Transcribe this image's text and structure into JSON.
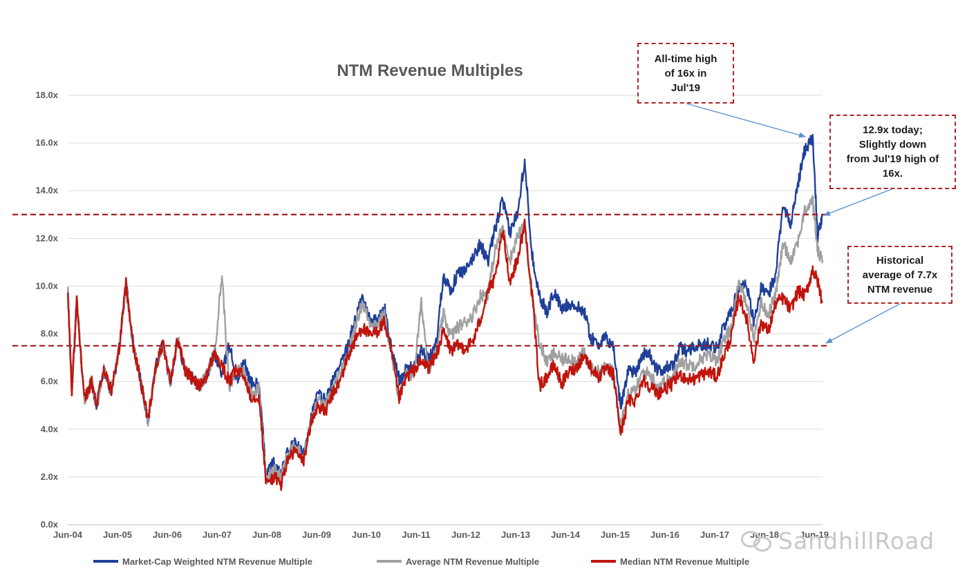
{
  "chart_data": {
    "type": "line",
    "title": "NTM Revenue Multiples",
    "xlabel": "",
    "ylabel": "",
    "ylim": [
      0,
      18
    ],
    "y_ticks": [
      "0.0x",
      "2.0x",
      "4.0x",
      "6.0x",
      "8.0x",
      "10.0x",
      "12.0x",
      "14.0x",
      "16.0x",
      "18.0x"
    ],
    "x_ticks": [
      "Jun-04",
      "Jun-05",
      "Jun-06",
      "Jun-07",
      "Jun-08",
      "Jun-09",
      "Jun-10",
      "Jun-11",
      "Jun-12",
      "Jun-13",
      "Jun-14",
      "Jun-15",
      "Jun-16",
      "Jun-17",
      "Jun-18",
      "Jun-19"
    ],
    "x_range": [
      2004.417,
      2019.75
    ],
    "grid": true,
    "legend_position": "bottom",
    "reference_lines": [
      13.0,
      7.5
    ],
    "series": [
      {
        "name": "Market-Cap Weighted NTM Revenue Multiple",
        "color": "#1f3f99",
        "x": [
          2004.42,
          2004.5,
          2004.6,
          2004.75,
          2004.9,
          2005.0,
          2005.15,
          2005.3,
          2005.45,
          2005.6,
          2005.75,
          2005.9,
          2006.05,
          2006.2,
          2006.35,
          2006.5,
          2006.65,
          2006.8,
          2006.95,
          2007.1,
          2007.25,
          2007.4,
          2007.55,
          2007.7,
          2007.85,
          2008.0,
          2008.15,
          2008.3,
          2008.45,
          2008.6,
          2008.75,
          2008.9,
          2009.05,
          2009.2,
          2009.35,
          2009.5,
          2009.65,
          2009.8,
          2009.95,
          2010.1,
          2010.25,
          2010.4,
          2010.55,
          2010.7,
          2010.85,
          2011.0,
          2011.15,
          2011.3,
          2011.45,
          2011.6,
          2011.75,
          2011.9,
          2012.05,
          2012.2,
          2012.35,
          2012.5,
          2012.65,
          2012.8,
          2012.95,
          2013.1,
          2013.25,
          2013.4,
          2013.55,
          2013.7,
          2013.85,
          2014.0,
          2014.15,
          2014.3,
          2014.45,
          2014.6,
          2014.75,
          2014.9,
          2015.05,
          2015.2,
          2015.35,
          2015.5,
          2015.65,
          2015.8,
          2015.95,
          2016.1,
          2016.25,
          2016.4,
          2016.55,
          2016.7,
          2016.85,
          2017.0,
          2017.15,
          2017.3,
          2017.45,
          2017.6,
          2017.75,
          2017.9,
          2018.05,
          2018.2,
          2018.35,
          2018.5,
          2018.65,
          2018.8,
          2018.95,
          2019.1,
          2019.25,
          2019.4,
          2019.55,
          2019.65,
          2019.75
        ],
        "values": [
          9.8,
          5.5,
          9.5,
          5.2,
          6.0,
          5.0,
          6.5,
          5.6,
          7.2,
          10.1,
          7.5,
          6.0,
          4.4,
          6.6,
          7.6,
          6.0,
          7.8,
          6.5,
          6.1,
          5.8,
          6.3,
          7.2,
          6.3,
          7.6,
          6.0,
          6.8,
          5.9,
          5.9,
          2.1,
          2.6,
          2.1,
          3.1,
          3.4,
          2.9,
          4.4,
          5.5,
          5.2,
          6.0,
          6.6,
          7.4,
          8.6,
          9.5,
          8.7,
          8.5,
          9.1,
          7.3,
          6.1,
          6.5,
          6.6,
          7.3,
          6.9,
          7.6,
          10.5,
          9.8,
          10.6,
          10.6,
          11.2,
          11.8,
          11.0,
          12.4,
          13.6,
          12.2,
          13.1,
          15.3,
          11.3,
          9.6,
          8.9,
          9.8,
          9.0,
          9.3,
          9.1,
          9.0,
          7.8,
          7.6,
          7.8,
          7.5,
          4.9,
          6.5,
          6.4,
          7.2,
          7.1,
          6.4,
          6.6,
          6.6,
          7.4,
          7.3,
          7.5,
          7.5,
          7.6,
          7.4,
          8.3,
          9.0,
          9.9,
          10.2,
          8.5,
          9.9,
          9.6,
          10.6,
          13.5,
          12.5,
          14.3,
          15.8,
          16.2,
          12.1,
          12.9
        ]
      },
      {
        "name": "Average NTM Revenue Multiple",
        "color": "#a0a0a0",
        "x": [
          2004.42,
          2004.5,
          2004.6,
          2004.75,
          2004.9,
          2005.0,
          2005.15,
          2005.3,
          2005.45,
          2005.6,
          2005.75,
          2005.9,
          2006.05,
          2006.2,
          2006.35,
          2006.5,
          2006.65,
          2006.8,
          2006.95,
          2007.1,
          2007.25,
          2007.4,
          2007.55,
          2007.7,
          2007.85,
          2008.0,
          2008.15,
          2008.3,
          2008.45,
          2008.6,
          2008.75,
          2008.9,
          2009.05,
          2009.2,
          2009.35,
          2009.5,
          2009.65,
          2009.8,
          2009.95,
          2010.1,
          2010.25,
          2010.4,
          2010.55,
          2010.7,
          2010.85,
          2011.0,
          2011.15,
          2011.3,
          2011.45,
          2011.6,
          2011.75,
          2011.9,
          2012.05,
          2012.2,
          2012.35,
          2012.5,
          2012.65,
          2012.8,
          2012.95,
          2013.1,
          2013.25,
          2013.4,
          2013.55,
          2013.7,
          2013.85,
          2014.0,
          2014.15,
          2014.3,
          2014.45,
          2014.6,
          2014.75,
          2014.9,
          2015.05,
          2015.2,
          2015.35,
          2015.5,
          2015.65,
          2015.8,
          2015.95,
          2016.1,
          2016.25,
          2016.4,
          2016.55,
          2016.7,
          2016.85,
          2017.0,
          2017.15,
          2017.3,
          2017.45,
          2017.6,
          2017.75,
          2017.9,
          2018.05,
          2018.2,
          2018.35,
          2018.5,
          2018.65,
          2018.8,
          2018.95,
          2019.1,
          2019.25,
          2019.4,
          2019.55,
          2019.65,
          2019.75
        ],
        "values": [
          9.8,
          5.5,
          9.5,
          5.2,
          6.0,
          5.0,
          6.5,
          5.6,
          7.2,
          10.1,
          7.5,
          6.0,
          4.4,
          6.6,
          7.6,
          6.0,
          7.8,
          6.5,
          6.1,
          5.8,
          6.3,
          7.2,
          10.5,
          5.6,
          6.6,
          6.4,
          5.5,
          5.7,
          1.9,
          2.3,
          2.0,
          3.0,
          3.3,
          2.8,
          4.3,
          5.2,
          4.9,
          5.7,
          6.3,
          7.0,
          8.3,
          9.3,
          8.5,
          8.4,
          8.8,
          7.0,
          5.3,
          6.3,
          6.3,
          9.3,
          6.5,
          7.2,
          8.8,
          7.9,
          8.3,
          8.5,
          8.8,
          9.6,
          9.7,
          11.5,
          12.5,
          11.1,
          12.1,
          12.5,
          9.5,
          7.6,
          6.8,
          7.2,
          6.9,
          7.0,
          6.9,
          7.2,
          6.5,
          6.4,
          6.6,
          6.4,
          4.3,
          5.5,
          5.6,
          6.4,
          6.3,
          5.8,
          6.0,
          6.1,
          6.9,
          6.7,
          6.7,
          7.0,
          7.1,
          6.9,
          7.7,
          8.3,
          10.1,
          9.4,
          7.8,
          9.3,
          8.8,
          9.7,
          11.8,
          11.1,
          11.9,
          13.2,
          13.6,
          11.5,
          11.1
        ]
      },
      {
        "name": "Median NTM Revenue Multiple",
        "color": "#c0140c",
        "x": [
          2004.42,
          2004.5,
          2004.6,
          2004.75,
          2004.9,
          2005.0,
          2005.15,
          2005.3,
          2005.45,
          2005.6,
          2005.75,
          2005.9,
          2006.05,
          2006.2,
          2006.35,
          2006.5,
          2006.65,
          2006.8,
          2006.95,
          2007.1,
          2007.25,
          2007.4,
          2007.55,
          2007.7,
          2007.85,
          2008.0,
          2008.15,
          2008.3,
          2008.45,
          2008.6,
          2008.75,
          2008.9,
          2009.05,
          2009.2,
          2009.35,
          2009.5,
          2009.65,
          2009.8,
          2009.95,
          2010.1,
          2010.25,
          2010.4,
          2010.55,
          2010.7,
          2010.85,
          2011.0,
          2011.15,
          2011.3,
          2011.45,
          2011.6,
          2011.75,
          2011.9,
          2012.05,
          2012.2,
          2012.35,
          2012.5,
          2012.65,
          2012.8,
          2012.95,
          2013.1,
          2013.25,
          2013.4,
          2013.55,
          2013.7,
          2013.85,
          2014.0,
          2014.15,
          2014.3,
          2014.45,
          2014.6,
          2014.75,
          2014.9,
          2015.05,
          2015.2,
          2015.35,
          2015.5,
          2015.65,
          2015.8,
          2015.95,
          2016.1,
          2016.25,
          2016.4,
          2016.55,
          2016.7,
          2016.85,
          2017.0,
          2017.15,
          2017.3,
          2017.45,
          2017.6,
          2017.75,
          2017.9,
          2018.05,
          2018.2,
          2018.35,
          2018.5,
          2018.65,
          2018.8,
          2018.95,
          2019.1,
          2019.25,
          2019.4,
          2019.55,
          2019.65,
          2019.75
        ],
        "values": [
          9.8,
          5.5,
          9.5,
          5.2,
          6.0,
          5.0,
          6.5,
          5.6,
          7.2,
          10.1,
          7.5,
          6.0,
          4.4,
          6.6,
          7.6,
          6.0,
          7.8,
          6.5,
          6.1,
          5.8,
          6.3,
          7.2,
          6.6,
          6.0,
          6.5,
          6.2,
          5.3,
          5.4,
          1.7,
          2.0,
          1.7,
          2.8,
          3.1,
          2.6,
          4.2,
          5.0,
          4.7,
          5.5,
          6.0,
          7.0,
          7.7,
          8.3,
          7.9,
          8.1,
          8.5,
          7.1,
          5.3,
          6.2,
          6.5,
          6.8,
          6.6,
          7.1,
          8.1,
          7.3,
          7.5,
          7.4,
          7.7,
          8.6,
          9.8,
          10.3,
          12.3,
          10.2,
          11.1,
          12.6,
          9.6,
          5.8,
          6.2,
          6.7,
          5.9,
          6.4,
          6.6,
          7.1,
          6.6,
          6.2,
          6.5,
          6.3,
          3.8,
          5.2,
          5.2,
          6.1,
          5.8,
          5.5,
          5.7,
          5.9,
          6.3,
          6.1,
          6.1,
          6.3,
          6.4,
          6.2,
          7.1,
          7.9,
          9.6,
          8.7,
          6.9,
          8.5,
          8.1,
          9.3,
          9.5,
          9.0,
          9.8,
          9.6,
          10.7,
          10.2,
          9.3
        ]
      }
    ]
  },
  "annotations": {
    "high": "All-time high\nof 16x in\nJul'19",
    "today": "12.9x today;\nSlightly down\nfrom Jul'19 high of\n16x.",
    "avg": "Historical\naverage of 7.7x\nNTM revenue"
  },
  "watermark": "SandhillRoad"
}
